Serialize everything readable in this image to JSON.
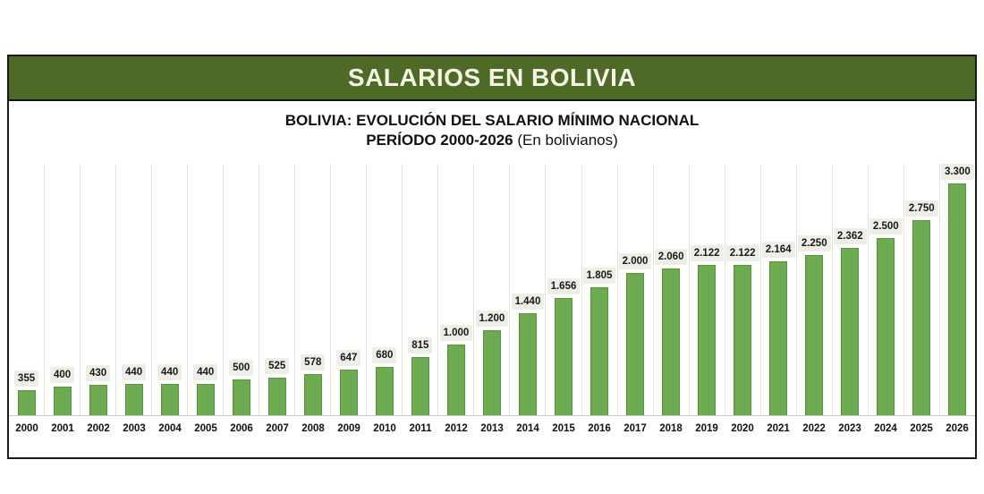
{
  "header": {
    "title": "SALARIOS EN BOLIVIA",
    "subtitle_line1": "BOLIVIA: EVOLUCIÓN DEL SALARIO MÍNIMO NACIONAL",
    "subtitle_line2_bold": "PERÍODO 2000-2026",
    "subtitle_line2_normal": "(En bolivianos)"
  },
  "colors": {
    "banner_bg": "#4d6a27",
    "banner_text": "#f4f3e4",
    "bar_fill": "#6dab50",
    "bar_edge": "#5a9440",
    "value_chip_bg": "#edefe6",
    "label_text": "#191919",
    "column_divider": "#e5e5e2",
    "baseline": "#c9c9c9",
    "frame_border": "#1b1b1b"
  },
  "chart_data": {
    "type": "bar",
    "title": "SALARIOS EN BOLIVIA",
    "subtitle": "BOLIVIA: EVOLUCIÓN DEL SALARIO MÍNIMO NACIONAL PERÍODO 2000-2026 (En bolivianos)",
    "unit": "bolivianos",
    "xlabel": "",
    "ylabel": "",
    "ylim": [
      0,
      3540
    ],
    "grid": "vertical column dividers only",
    "legend": "none",
    "categories": [
      "2000",
      "2001",
      "2002",
      "2003",
      "2004",
      "2005",
      "2006",
      "2007",
      "2008",
      "2009",
      "2010",
      "2011",
      "2012",
      "2013",
      "2014",
      "2015",
      "2016",
      "2017",
      "2018",
      "2019",
      "2020",
      "2021",
      "2022",
      "2023",
      "2024",
      "2025",
      "2026"
    ],
    "values": [
      355,
      400,
      430,
      440,
      440,
      440,
      500,
      525,
      578,
      647,
      680,
      815,
      1000,
      1200,
      1440,
      1656,
      1805,
      2000,
      2060,
      2122,
      2122,
      2164,
      2250,
      2362,
      2500,
      2750,
      3300
    ],
    "value_labels": [
      "355",
      "400",
      "430",
      "440",
      "440",
      "440",
      "500",
      "525",
      "578",
      "647",
      "680",
      "815",
      "1.000",
      "1.200",
      "1.440",
      "1.656",
      "1.805",
      "2.000",
      "2.060",
      "2.122",
      "2.122",
      "2.164",
      "2.250",
      "2.362",
      "2.500",
      "2.750",
      "3.300"
    ]
  }
}
